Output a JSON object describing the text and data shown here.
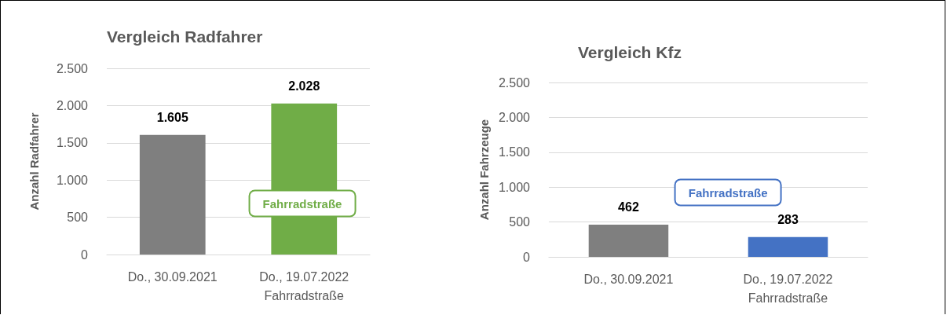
{
  "chart_data": [
    {
      "type": "bar",
      "title": "Vergleich Radfahrer",
      "ylabel": "Anzahl Radfahrer",
      "categories": [
        "Do., 30.09.2021",
        "Do., 19.07.2022\nFahrradstraße"
      ],
      "values": [
        1605,
        2028
      ],
      "colors": [
        "#7f7f7f",
        "#70ad47"
      ],
      "value_labels": [
        "1.605",
        "2.028"
      ],
      "ylim": [
        0,
        2500
      ],
      "yticks": [
        {
          "value": 0,
          "label": "0"
        },
        {
          "value": 500,
          "label": "500"
        },
        {
          "value": 1000,
          "label": "1.000"
        },
        {
          "value": 1500,
          "label": "1.500"
        },
        {
          "value": 2000,
          "label": "2.000"
        },
        {
          "value": 2500,
          "label": "2.500"
        }
      ],
      "grid": "y",
      "annotations": [
        "Fahrradstraße"
      ]
    },
    {
      "type": "bar",
      "title": "Vergleich Kfz",
      "ylabel": "Anzahl Fahrzeuge",
      "categories": [
        "Do., 30.09.2021",
        "Do., 19.07.2022\nFahrradstraße"
      ],
      "values": [
        462,
        283
      ],
      "colors": [
        "#7f7f7f",
        "#4472c4"
      ],
      "value_labels": [
        "462",
        "283"
      ],
      "ylim": [
        0,
        2500
      ],
      "yticks": [
        {
          "value": 0,
          "label": "0"
        },
        {
          "value": 500,
          "label": "500"
        },
        {
          "value": 1000,
          "label": "1.000"
        },
        {
          "value": 1500,
          "label": "1.500"
        },
        {
          "value": 2000,
          "label": "2.000"
        },
        {
          "value": 2500,
          "label": "2.500"
        }
      ],
      "grid": "y",
      "annotations": [
        "Fahrradstraße"
      ]
    }
  ]
}
